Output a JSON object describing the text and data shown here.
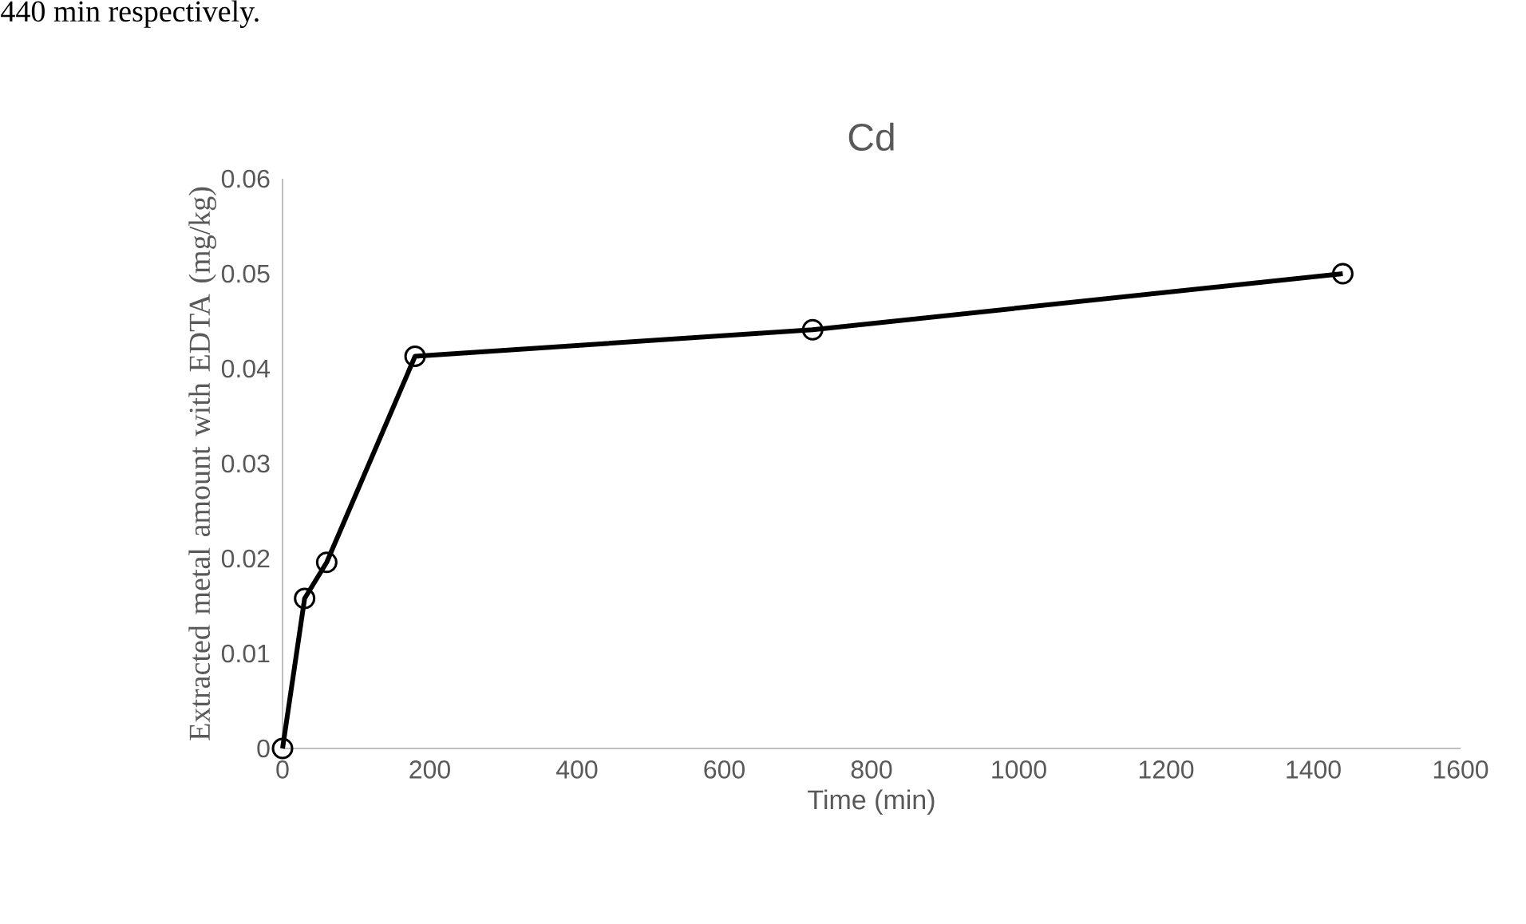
{
  "chart_data": {
    "type": "line",
    "title": "Cd",
    "xlabel": "Time (min)",
    "ylabel": "Extracted metal amount with EDTA (mg/kg)",
    "annotations": [
      "440 min respectively."
    ],
    "x": [
      0,
      30,
      60,
      180,
      720,
      1440
    ],
    "series": [
      {
        "color": "#000000",
        "values": [
          0,
          0.0158,
          0.0196,
          0.0413,
          0.0441,
          0.05
        ]
      }
    ],
    "xlim": [
      0,
      1600
    ],
    "xticks": [
      0,
      200,
      400,
      600,
      800,
      1000,
      1200,
      1400,
      1600
    ],
    "ylim": [
      0,
      0.06
    ],
    "yticks": [
      0,
      0.01,
      0.02,
      0.03,
      0.04,
      0.05,
      0.06
    ],
    "marker": "circle",
    "line_style": "solid"
  }
}
